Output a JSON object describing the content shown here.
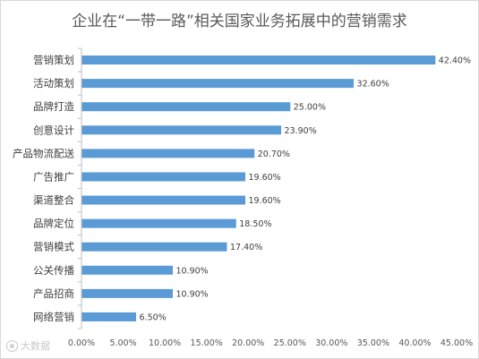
{
  "chart_data": {
    "type": "bar",
    "orientation": "horizontal",
    "title": "企业在“一带一路”相关国家业务拓展中的营销需求",
    "categories": [
      "营销策划",
      "活动策划",
      "品牌打造",
      "创意设计",
      "产品物流配送",
      "广告推广",
      "渠道整合",
      "品牌定位",
      "营销模式",
      "公关传播",
      "产品招商",
      "网络营销"
    ],
    "values": [
      42.4,
      32.6,
      25.0,
      23.9,
      20.7,
      19.6,
      19.6,
      18.5,
      17.4,
      10.9,
      10.9,
      6.5
    ],
    "value_labels": [
      "42.40%",
      "32.60%",
      "25.00%",
      "23.90%",
      "20.70%",
      "19.60%",
      "19.60%",
      "18.50%",
      "17.40%",
      "10.90%",
      "10.90%",
      "6.50%"
    ],
    "x_ticks": [
      "0.00%",
      "5.00%",
      "10.00%",
      "15.00%",
      "20.00%",
      "25.00%",
      "30.00%",
      "35.00%",
      "40.00%",
      "45.00%"
    ],
    "xlim": [
      0,
      45
    ],
    "xlabel": "",
    "ylabel": "",
    "grid": false,
    "legend": "none",
    "bar_color": "#5b9bd5"
  },
  "watermark": {
    "text": "大数据",
    "icon": "watermark-logo-icon"
  }
}
